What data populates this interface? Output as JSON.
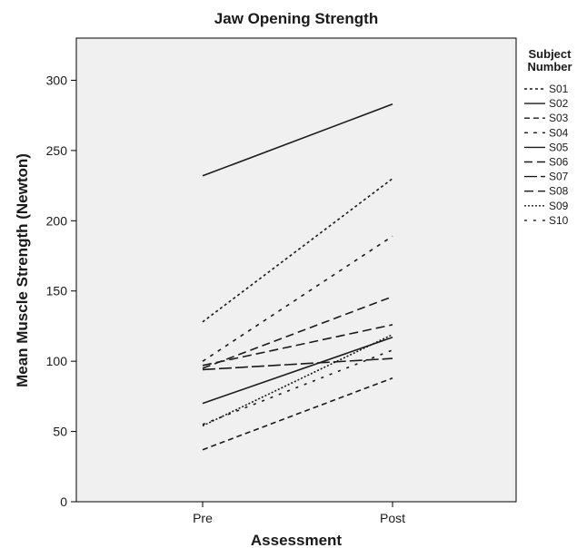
{
  "chart_data": {
    "type": "line",
    "title": "Jaw Opening Strength",
    "xlabel": "Assessment",
    "ylabel": "Mean Muscle Strength (Newton)",
    "categories": [
      "Pre",
      "Post"
    ],
    "ylim": [
      0,
      330
    ],
    "yticks": [
      0,
      50,
      100,
      150,
      200,
      250,
      300
    ],
    "grid": false,
    "legend": {
      "title_lines": [
        "Subject",
        "Number"
      ],
      "placement": "right"
    },
    "series": [
      {
        "name": "S01",
        "values": [
          128,
          230
        ],
        "dash": "3,3"
      },
      {
        "name": "S02",
        "values": [
          232,
          283
        ],
        "dash": ""
      },
      {
        "name": "S03",
        "values": [
          37,
          88
        ],
        "dash": "6,4"
      },
      {
        "name": "S04",
        "values": [
          100,
          189
        ],
        "dash": "4,6"
      },
      {
        "name": "S05",
        "values": [
          70,
          117
        ],
        "dash": ""
      },
      {
        "name": "S06",
        "values": [
          95,
          146
        ],
        "dash": "9,5"
      },
      {
        "name": "S07",
        "values": [
          94,
          102
        ],
        "dash": "14,4"
      },
      {
        "name": "S08",
        "values": [
          97,
          126
        ],
        "dash": "10,5"
      },
      {
        "name": "S09",
        "values": [
          54,
          119
        ],
        "dash": "2,2"
      },
      {
        "name": "S10",
        "values": [
          55,
          108
        ],
        "dash": "3,7"
      }
    ]
  }
}
